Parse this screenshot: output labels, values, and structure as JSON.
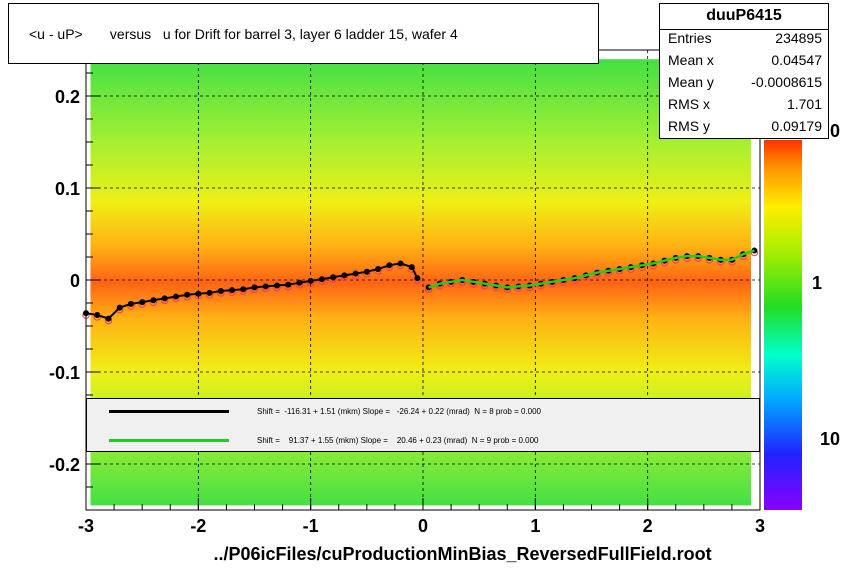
{
  "title": "<u - uP>       versus   u for Drift for barrel 3, layer 6 ladder 15, wafer 4",
  "stats": {
    "name": "duuP6415",
    "rows": [
      {
        "label": "Entries",
        "value": "234895"
      },
      {
        "label": "Mean x",
        "value": "0.04547"
      },
      {
        "label": "Mean y",
        "value": "-0.0008615"
      },
      {
        "label": "RMS x",
        "value": "1.701"
      },
      {
        "label": "RMS y",
        "value": "0.09179"
      }
    ]
  },
  "legend": {
    "black": "Shift =  -116.31 + 1.51 (mkm) Slope =   -26.24 + 0.22 (mrad)  N = 8 prob = 0.000",
    "green": "Shift =    91.37 + 1.55 (mkm) Slope =    20.46 + 0.23 (mrad)  N = 9 prob = 0.000"
  },
  "footer": "../P06icFiles/cuProductionMinBias_ReversedFullField.root",
  "colors": {
    "black_fit": "#000000",
    "green_fit": "#22cc22",
    "markers": "#ff3366"
  },
  "chart_data": {
    "type": "heatmap",
    "xlim": [
      -3,
      3
    ],
    "ylim": [
      -0.25,
      0.25
    ],
    "x_ticks": [
      "-3",
      "-2",
      "-1",
      "0",
      "1",
      "2",
      "3"
    ],
    "y_ticks": [
      "-0.2",
      "-0.1",
      "0",
      "0.1",
      "0.2"
    ],
    "colorbar_labels": [
      "1",
      "10"
    ],
    "colorbar_top_label": "0",
    "grid": true,
    "series": [
      {
        "x": [
          -3.0,
          -2.9,
          -2.8,
          -2.7,
          -2.6,
          -2.5,
          -2.4,
          -2.3,
          -2.2,
          -2.1,
          -2.0,
          -1.9,
          -1.8,
          -1.7,
          -1.6,
          -1.5,
          -1.4,
          -1.3,
          -1.2,
          -1.1,
          -1.0,
          -0.9,
          -0.8,
          -0.7,
          -0.6,
          -0.5,
          -0.4,
          -0.3,
          -0.2,
          -0.1,
          -0.05
        ],
        "y": [
          -0.036,
          -0.038,
          -0.042,
          -0.03,
          -0.026,
          -0.024,
          -0.022,
          -0.02,
          -0.018,
          -0.016,
          -0.015,
          -0.014,
          -0.012,
          -0.011,
          -0.01,
          -0.008,
          -0.007,
          -0.006,
          -0.005,
          -0.003,
          -0.001,
          0.001,
          0.003,
          0.005,
          0.007,
          0.009,
          0.012,
          0.016,
          0.018,
          0.014,
          0.002
        ]
      },
      {
        "x": [
          0.05,
          0.15,
          0.25,
          0.35,
          0.45,
          0.55,
          0.65,
          0.75,
          0.85,
          0.95,
          1.05,
          1.15,
          1.25,
          1.35,
          1.45,
          1.55,
          1.65,
          1.75,
          1.85,
          1.95,
          2.05,
          2.15,
          2.25,
          2.35,
          2.45,
          2.55,
          2.65,
          2.75,
          2.85,
          2.95
        ],
        "y": [
          -0.008,
          -0.004,
          -0.002,
          0.0,
          -0.002,
          -0.004,
          -0.006,
          -0.008,
          -0.007,
          -0.006,
          -0.004,
          -0.002,
          0.0,
          0.002,
          0.005,
          0.008,
          0.01,
          0.012,
          0.014,
          0.016,
          0.018,
          0.021,
          0.024,
          0.026,
          0.026,
          0.024,
          0.022,
          0.022,
          0.028,
          0.032
        ]
      }
    ]
  }
}
